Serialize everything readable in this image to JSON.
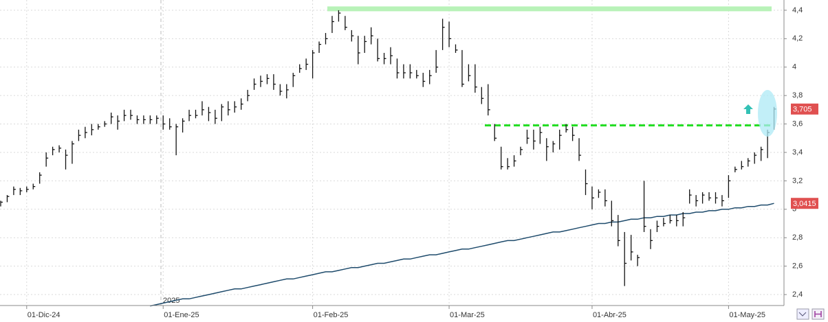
{
  "chart_data": {
    "type": "ohlc",
    "categories": [
      null,
      null,
      null,
      null,
      "01-Dic-24",
      null,
      null,
      null,
      null,
      null,
      null,
      null,
      null,
      null,
      null,
      null,
      null,
      null,
      null,
      null,
      null,
      null,
      null,
      null,
      null,
      "01-Ene-25",
      null,
      null,
      null,
      null,
      null,
      null,
      null,
      null,
      null,
      null,
      null,
      null,
      null,
      null,
      null,
      null,
      null,
      null,
      null,
      null,
      null,
      null,
      "01-Feb-25",
      null,
      null,
      null,
      null,
      null,
      null,
      null,
      null,
      null,
      null,
      null,
      null,
      null,
      null,
      null,
      null,
      null,
      null,
      null,
      null,
      "01-Mar-25",
      null,
      null,
      null,
      null,
      null,
      null,
      null,
      null,
      null,
      null,
      null,
      null,
      null,
      null,
      null,
      null,
      null,
      null,
      null,
      null,
      null,
      "01-Abr-25",
      null,
      null,
      null,
      null,
      null,
      null,
      null,
      null,
      null,
      null,
      null,
      null,
      null,
      null,
      null,
      null,
      null,
      null,
      null,
      null,
      "01-May-25",
      null,
      null,
      null,
      null,
      null,
      null,
      null
    ],
    "bars": {
      "color": "#111111",
      "high": [
        3.06,
        3.1,
        3.16,
        3.15,
        3.16,
        3.18,
        3.26,
        3.4,
        3.44,
        3.45,
        3.42,
        3.48,
        3.56,
        3.58,
        3.6,
        3.6,
        3.62,
        3.68,
        3.66,
        3.7,
        3.7,
        3.66,
        3.66,
        3.66,
        3.66,
        3.66,
        3.64,
        3.6,
        3.64,
        3.7,
        3.7,
        3.76,
        3.72,
        3.7,
        3.74,
        3.76,
        3.76,
        3.78,
        3.84,
        3.92,
        3.94,
        3.95,
        3.95,
        3.88,
        3.88,
        3.96,
        4.02,
        4.06,
        4.12,
        4.18,
        4.24,
        4.36,
        4.4,
        4.36,
        4.26,
        4.22,
        4.22,
        4.28,
        4.2,
        4.1,
        4.14,
        4.06,
        4.02,
        4.02,
        3.98,
        3.96,
        3.98,
        4.12,
        4.34,
        4.32,
        4.16,
        4.12,
        4.02,
        4.02,
        3.86,
        3.88,
        3.6,
        3.44,
        3.36,
        3.38,
        3.44,
        3.56,
        3.56,
        3.58,
        3.5,
        3.48,
        3.56,
        3.6,
        3.58,
        3.5,
        3.28,
        3.16,
        3.14,
        3.14,
        3.06,
        2.96,
        2.84,
        2.82,
        2.68,
        3.2,
        2.86,
        2.92,
        2.94,
        2.96,
        2.96,
        2.98,
        3.14,
        3.1,
        3.12,
        3.12,
        3.12,
        3.1,
        3.24,
        3.3,
        3.34,
        3.36,
        3.4,
        3.44,
        3.56,
        3.72
      ],
      "low": [
        3.02,
        3.05,
        3.1,
        3.1,
        3.12,
        3.14,
        3.18,
        3.3,
        3.38,
        3.4,
        3.28,
        3.32,
        3.48,
        3.5,
        3.52,
        3.56,
        3.58,
        3.6,
        3.56,
        3.62,
        3.63,
        3.6,
        3.6,
        3.6,
        3.6,
        3.56,
        3.56,
        3.38,
        3.54,
        3.62,
        3.64,
        3.66,
        3.62,
        3.6,
        3.62,
        3.66,
        3.68,
        3.7,
        3.76,
        3.84,
        3.86,
        3.88,
        3.84,
        3.8,
        3.78,
        3.86,
        3.96,
        3.98,
        3.92,
        4.1,
        4.16,
        4.24,
        4.32,
        4.26,
        4.18,
        4.02,
        4.1,
        4.16,
        4.04,
        4.02,
        4.02,
        3.92,
        3.92,
        3.92,
        3.92,
        3.86,
        3.88,
        3.96,
        4.12,
        4.14,
        4.1,
        3.86,
        3.9,
        3.82,
        3.74,
        3.66,
        3.48,
        3.28,
        3.28,
        3.3,
        3.38,
        3.46,
        3.42,
        3.46,
        3.34,
        3.4,
        3.42,
        3.54,
        3.48,
        3.34,
        3.1,
        3.0,
        3.08,
        3.02,
        2.88,
        2.74,
        2.46,
        2.64,
        2.6,
        2.84,
        2.72,
        2.84,
        2.88,
        2.9,
        2.88,
        2.88,
        3.04,
        3.02,
        3.04,
        3.06,
        3.04,
        3.02,
        3.08,
        3.26,
        3.28,
        3.3,
        3.32,
        3.34,
        3.36,
        3.56
      ],
      "close": [
        3.05,
        3.09,
        3.14,
        3.13,
        3.14,
        3.16,
        3.24,
        3.36,
        3.42,
        3.43,
        3.38,
        3.46,
        3.52,
        3.54,
        3.56,
        3.58,
        3.6,
        3.65,
        3.62,
        3.66,
        3.66,
        3.63,
        3.63,
        3.63,
        3.64,
        3.6,
        3.58,
        3.58,
        3.62,
        3.66,
        3.66,
        3.7,
        3.68,
        3.64,
        3.72,
        3.7,
        3.72,
        3.74,
        3.8,
        3.88,
        3.9,
        3.92,
        3.88,
        3.83,
        3.84,
        3.94,
        3.99,
        4.02,
        4.1,
        4.16,
        4.2,
        4.32,
        4.38,
        4.28,
        4.22,
        4.1,
        4.18,
        4.22,
        4.06,
        4.06,
        4.08,
        3.96,
        3.96,
        3.96,
        3.94,
        3.9,
        3.94,
        4.0,
        4.28,
        4.2,
        4.12,
        3.88,
        3.94,
        3.86,
        3.78,
        3.7,
        3.5,
        3.3,
        3.3,
        3.34,
        3.42,
        3.5,
        3.48,
        3.54,
        3.44,
        3.46,
        3.52,
        3.56,
        3.52,
        3.38,
        3.18,
        3.08,
        3.12,
        3.06,
        2.92,
        2.78,
        2.62,
        2.7,
        2.66,
        2.88,
        2.78,
        2.88,
        2.9,
        2.92,
        2.92,
        2.94,
        3.1,
        3.06,
        3.1,
        3.08,
        3.08,
        3.06,
        3.2,
        3.28,
        3.3,
        3.34,
        3.38,
        3.42,
        3.54,
        3.705
      ]
    },
    "moving_average": {
      "color": "#1d4a6b",
      "values": [
        null,
        null,
        null,
        null,
        null,
        null,
        null,
        null,
        null,
        null,
        null,
        null,
        null,
        null,
        null,
        null,
        null,
        null,
        null,
        null,
        null,
        null,
        null,
        2.32,
        2.33,
        2.34,
        2.35,
        2.36,
        2.37,
        2.37,
        2.38,
        2.39,
        2.4,
        2.41,
        2.42,
        2.43,
        2.44,
        2.44,
        2.45,
        2.46,
        2.47,
        2.48,
        2.49,
        2.5,
        2.51,
        2.51,
        2.52,
        2.53,
        2.54,
        2.55,
        2.56,
        2.56,
        2.57,
        2.58,
        2.59,
        2.59,
        2.6,
        2.61,
        2.62,
        2.62,
        2.63,
        2.64,
        2.65,
        2.65,
        2.66,
        2.67,
        2.68,
        2.68,
        2.69,
        2.7,
        2.71,
        2.72,
        2.72,
        2.73,
        2.74,
        2.75,
        2.76,
        2.77,
        2.78,
        2.78,
        2.79,
        2.8,
        2.81,
        2.82,
        2.83,
        2.84,
        2.84,
        2.85,
        2.86,
        2.87,
        2.88,
        2.89,
        2.9,
        2.9,
        2.91,
        2.91,
        2.92,
        2.93,
        2.93,
        2.94,
        2.94,
        2.95,
        2.95,
        2.96,
        2.96,
        2.97,
        2.97,
        2.98,
        2.98,
        2.99,
        2.99,
        3.0,
        3.0,
        3.01,
        3.01,
        3.02,
        3.02,
        3.03,
        3.03,
        3.0415
      ]
    },
    "levels": [
      {
        "value": 4.41,
        "color": "#b8f2b8",
        "style": "solid"
      },
      {
        "value": 3.59,
        "color": "#22dd22",
        "style": "dashed"
      }
    ],
    "price_tags": [
      {
        "value": 3.705,
        "label": "3,705",
        "color": "#e05050"
      },
      {
        "value": 3.0415,
        "label": "3,0415",
        "color": "#e05050"
      }
    ],
    "year_label": "2025",
    "ylim": [
      2.323,
      4.472
    ],
    "yticks": [
      {
        "value": 2.4,
        "label": "2,4"
      },
      {
        "value": 2.6,
        "label": "2,6"
      },
      {
        "value": 2.8,
        "label": "2,8"
      },
      3,
      {
        "value": 3.2,
        "label": "3,2"
      },
      {
        "value": 3.4,
        "label": "3,4"
      },
      {
        "value": 3.6,
        "label": "3,6"
      },
      {
        "value": 3.8,
        "label": "3,8"
      },
      4,
      {
        "value": 4.2,
        "label": "4,2"
      },
      {
        "value": 4.4,
        "label": "4,4"
      }
    ],
    "grid": true
  }
}
